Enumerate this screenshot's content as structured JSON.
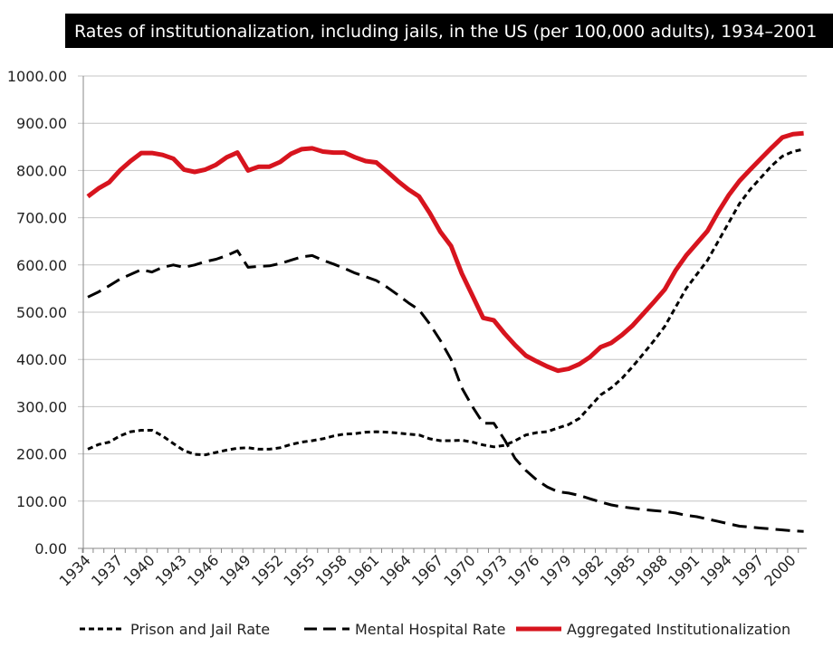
{
  "chart_data": {
    "type": "line",
    "title": "Rates of institutionalization, including jails, in the US  (per 100,000 adults), 1934–2001",
    "xlabel": "",
    "ylabel": "",
    "ylim": [
      0,
      1000
    ],
    "yticks": [
      "0.00",
      "100.00",
      "200.00",
      "300.00",
      "400.00",
      "500.00",
      "600.00",
      "700.00",
      "800.00",
      "900.00",
      "1000.00"
    ],
    "ytick_values": [
      0,
      100,
      200,
      300,
      400,
      500,
      600,
      700,
      800,
      900,
      1000
    ],
    "xticks": [
      "1934",
      "1937",
      "1940",
      "1943",
      "1946",
      "1949",
      "1952",
      "1955",
      "1958",
      "1961",
      "1964",
      "1967",
      "1970",
      "1973",
      "1976",
      "1979",
      "1982",
      "1985",
      "1988",
      "1991",
      "1994",
      "1997",
      "2000"
    ],
    "grid": true,
    "legend_placement": "bottom",
    "x_start": 1934,
    "x_end": 2001,
    "series": [
      {
        "name": "Prison and Jail Rate",
        "style": "short-dash",
        "color": "#000000",
        "values": [
          210,
          220,
          225,
          238,
          247,
          250,
          250,
          238,
          222,
          207,
          199,
          198,
          203,
          208,
          212,
          213,
          210,
          210,
          213,
          220,
          225,
          228,
          232,
          238,
          242,
          243,
          246,
          247,
          246,
          244,
          242,
          240,
          232,
          228,
          228,
          229,
          225,
          219,
          215,
          218,
          228,
          240,
          245,
          247,
          255,
          262,
          275,
          300,
          325,
          340,
          360,
          385,
          412,
          440,
          470,
          510,
          550,
          580,
          610,
          650,
          690,
          730,
          760,
          785,
          810,
          830,
          840,
          845
        ]
      },
      {
        "name": "Mental Hospital Rate",
        "style": "long-dash",
        "color": "#000000",
        "values": [
          532,
          543,
          556,
          570,
          580,
          590,
          585,
          595,
          600,
          595,
          600,
          607,
          612,
          620,
          630,
          595,
          597,
          598,
          603,
          610,
          617,
          620,
          610,
          602,
          593,
          583,
          575,
          567,
          553,
          537,
          520,
          505,
          475,
          440,
          400,
          340,
          300,
          265,
          265,
          230,
          190,
          165,
          145,
          130,
          120,
          117,
          112,
          105,
          98,
          92,
          88,
          85,
          82,
          80,
          78,
          75,
          70,
          67,
          62,
          57,
          52,
          47,
          45,
          43,
          41,
          39,
          37,
          36
        ]
      },
      {
        "name": "Aggregated Institutionalization",
        "style": "solid",
        "color": "#d7141e",
        "values": [
          745,
          762,
          775,
          800,
          820,
          837,
          837,
          833,
          825,
          802,
          797,
          802,
          812,
          828,
          838,
          800,
          808,
          808,
          818,
          835,
          845,
          847,
          840,
          838,
          838,
          828,
          820,
          817,
          798,
          778,
          760,
          745,
          710,
          670,
          640,
          582,
          535,
          488,
          483,
          455,
          430,
          408,
          396,
          385,
          376,
          380,
          390,
          405,
          426,
          435,
          452,
          472,
          497,
          522,
          548,
          588,
          620,
          646,
          672,
          712,
          748,
          778,
          802,
          825,
          848,
          870,
          877,
          879
        ]
      }
    ]
  }
}
